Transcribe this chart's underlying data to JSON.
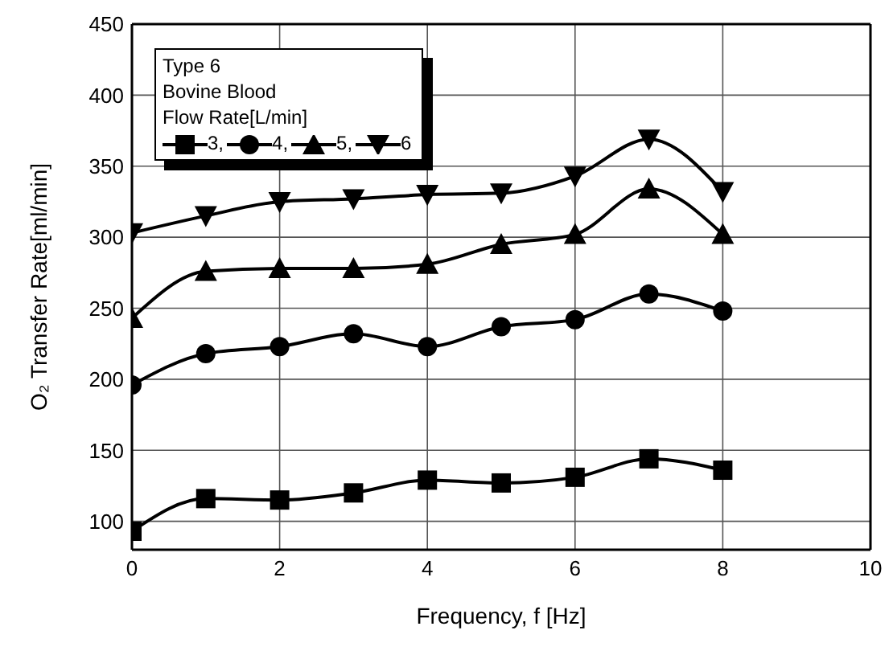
{
  "chart_data": {
    "type": "line",
    "xlabel": "Frequency, f [Hz]",
    "ylabel": "O₂ Transfer Rate[ml/min]",
    "legend_title": "Flow Rate[L/min]",
    "annotations": [
      "Type 6",
      "Bovine Blood"
    ],
    "x": [
      0,
      1,
      2,
      3,
      4,
      5,
      6,
      7,
      8
    ],
    "series": [
      {
        "name": "3,",
        "color": "#000000",
        "marker": "square",
        "values": [
          93,
          116,
          115,
          120,
          129,
          127,
          131,
          144,
          136
        ]
      },
      {
        "name": "4,",
        "color": "#000000",
        "marker": "circle",
        "values": [
          196,
          218,
          223,
          232,
          223,
          237,
          242,
          260,
          248
        ]
      },
      {
        "name": "5,",
        "color": "#000000",
        "marker": "triangle",
        "values": [
          243,
          276,
          278,
          278,
          281,
          295,
          302,
          334,
          302
        ]
      },
      {
        "name": "6",
        "color": "#000000",
        "marker": "triangle-down",
        "values": [
          303,
          315,
          325,
          327,
          330,
          331,
          343,
          369,
          332
        ]
      }
    ],
    "xlim": [
      0,
      10
    ],
    "xticks": [
      0,
      2,
      4,
      6,
      8,
      10
    ],
    "ylim": [
      80,
      450
    ],
    "yticks": [
      100,
      150,
      200,
      250,
      300,
      350,
      400,
      450
    ],
    "grid": true,
    "legend": "top left",
    "line_style": "solid"
  }
}
